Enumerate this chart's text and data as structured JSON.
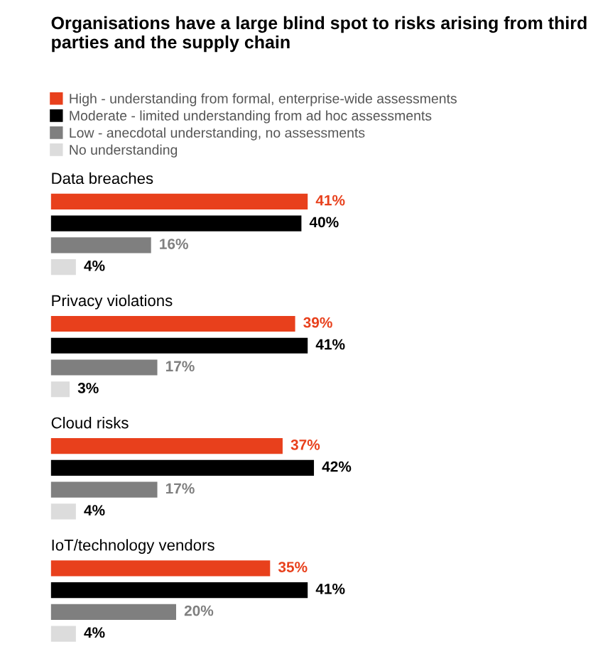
{
  "chart_data": {
    "type": "bar",
    "orientation": "horizontal",
    "title": "Organisations have a large blind spot to risks arising from third parties and the supply chain",
    "categories": [
      "Data breaches",
      "Privacy violations",
      "Cloud risks",
      "IoT/technology vendors"
    ],
    "series": [
      {
        "name": "High - understanding from formal, enterprise-wide assessments",
        "color": "#e8401c",
        "values": [
          41,
          39,
          37,
          35
        ],
        "value_labels": [
          "41%",
          "39%",
          "37%",
          "35%"
        ]
      },
      {
        "name": "Moderate - limited understanding from ad hoc assessments",
        "color": "#000000",
        "values": [
          40,
          41,
          42,
          41
        ],
        "value_labels": [
          "40%",
          "41%",
          "42%",
          "41%"
        ]
      },
      {
        "name": "Low - anecdotal understanding, no assessments",
        "color": "#7f7f7f",
        "values": [
          16,
          17,
          17,
          20
        ],
        "value_labels": [
          "16%",
          "17%",
          "17%",
          "20%"
        ]
      },
      {
        "name": "No understanding",
        "color": "#dcdcdc",
        "values": [
          4,
          3,
          4,
          4
        ],
        "value_labels": [
          "4%",
          "3%",
          "4%",
          "4%"
        ]
      }
    ],
    "legend": "top"
  }
}
